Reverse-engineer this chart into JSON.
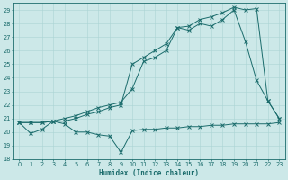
{
  "xlabel": "Humidex (Indice chaleur)",
  "bg_color": "#cce8e8",
  "line_color": "#1a6b6b",
  "grid_color": "#aad4d4",
  "xlim": [
    -0.5,
    23.5
  ],
  "ylim": [
    18,
    29.5
  ],
  "yticks": [
    18,
    19,
    20,
    21,
    22,
    23,
    24,
    25,
    26,
    27,
    28,
    29
  ],
  "xticks": [
    0,
    1,
    2,
    3,
    4,
    5,
    6,
    7,
    8,
    9,
    10,
    11,
    12,
    13,
    14,
    15,
    16,
    17,
    18,
    19,
    20,
    21,
    22,
    23
  ],
  "s1_x": [
    0,
    1,
    2,
    3,
    4,
    5,
    6,
    7,
    8,
    9,
    10,
    11,
    12,
    13,
    14,
    15,
    16,
    17,
    18,
    19,
    20,
    21,
    22,
    23
  ],
  "s1_y": [
    20.7,
    19.9,
    20.2,
    20.8,
    20.6,
    20.0,
    20.0,
    19.8,
    19.7,
    18.5,
    20.1,
    20.2,
    20.2,
    20.3,
    20.3,
    20.4,
    20.4,
    20.5,
    20.5,
    20.6,
    20.6,
    20.6,
    20.6,
    20.7
  ],
  "s2_x": [
    0,
    1,
    2,
    3,
    4,
    5,
    6,
    7,
    8,
    9,
    10,
    11,
    12,
    13,
    14,
    15,
    16,
    17,
    18,
    19,
    20,
    21,
    22,
    23
  ],
  "s2_y": [
    20.7,
    20.7,
    20.7,
    20.8,
    21.0,
    21.2,
    21.5,
    21.8,
    22.0,
    22.2,
    23.2,
    25.2,
    25.5,
    26.0,
    27.7,
    27.5,
    28.0,
    27.8,
    28.3,
    29.0,
    26.7,
    23.8,
    22.3,
    21.0
  ],
  "s3_x": [
    0,
    1,
    2,
    3,
    4,
    5,
    6,
    7,
    8,
    9,
    10,
    11,
    12,
    13,
    14,
    15,
    16,
    17,
    18,
    19,
    20,
    21,
    22,
    23
  ],
  "s3_y": [
    20.7,
    20.7,
    20.7,
    20.8,
    20.8,
    21.0,
    21.3,
    21.5,
    21.8,
    22.0,
    25.0,
    25.5,
    26.0,
    26.5,
    27.7,
    27.8,
    28.3,
    28.5,
    28.8,
    29.2,
    29.0,
    29.1,
    22.3,
    21.0
  ]
}
